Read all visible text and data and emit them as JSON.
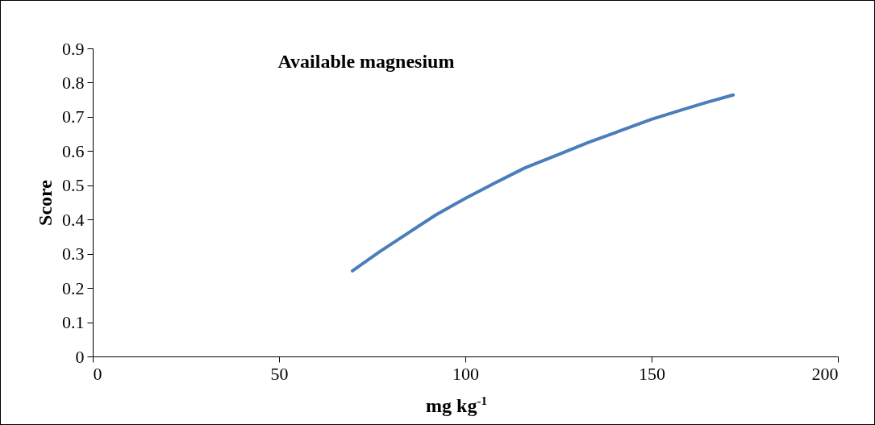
{
  "chart_data": {
    "type": "line",
    "title": "Available magnesium",
    "xlabel": "mg kg$^{-1}$",
    "ylabel": "Score",
    "series": [
      {
        "color": "#4a7ebb",
        "x": [
          69.7,
          77,
          85,
          92,
          100,
          108,
          116,
          125,
          133,
          141,
          150,
          158,
          165,
          171.9
        ],
        "values": [
          0.25,
          0.306,
          0.363,
          0.413,
          0.462,
          0.507,
          0.551,
          0.59,
          0.625,
          0.657,
          0.693,
          0.72,
          0.743,
          0.764
        ]
      }
    ],
    "xlim": [
      0,
      200
    ],
    "xticks": [
      0,
      50,
      100,
      150,
      200
    ],
    "ylim": [
      0,
      0.9
    ],
    "yticks": [
      0,
      0.1,
      0.2,
      0.3,
      0.4,
      0.5,
      0.6,
      0.7,
      0.8,
      0.9
    ],
    "grid": false,
    "marker": "none",
    "line_style": "solid"
  }
}
